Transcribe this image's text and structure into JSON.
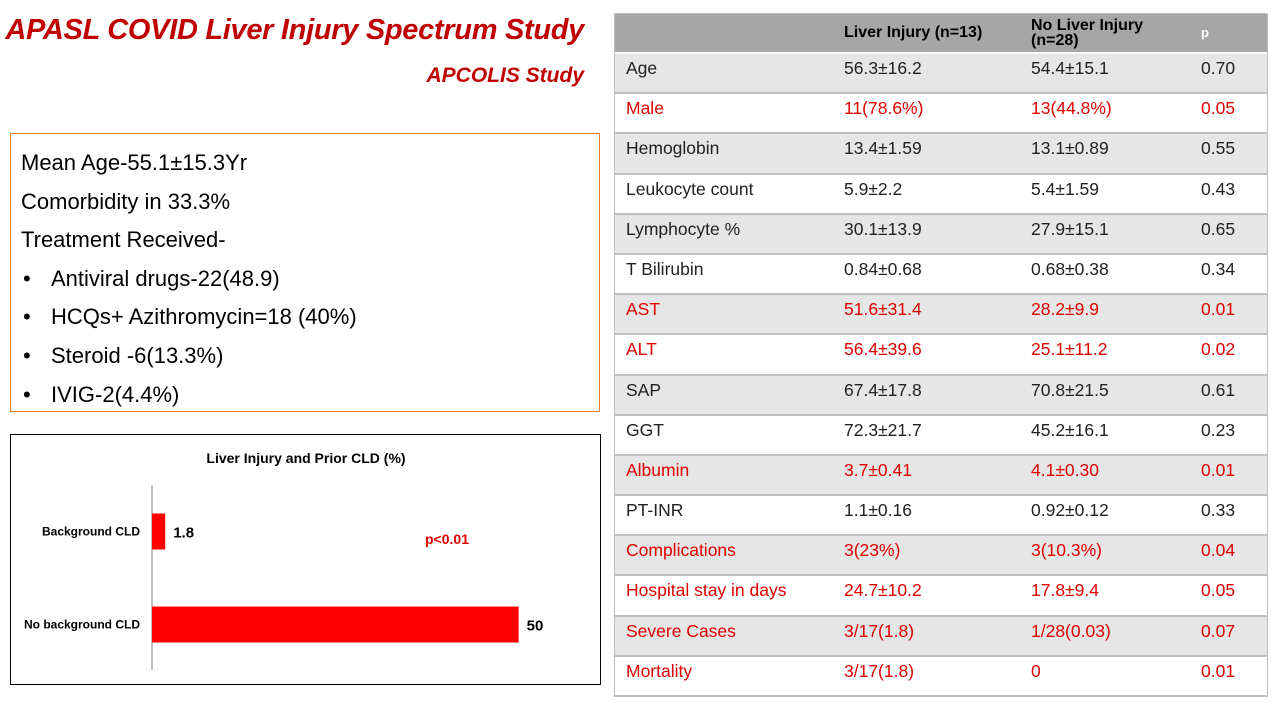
{
  "header": {
    "title": "APASL COVID Liver Injury Spectrum Study",
    "subtitle": "APCOLIS Study"
  },
  "summary": {
    "lines": [
      "Mean Age-55.1±15.3Yr",
      "Comorbidity in 33.3%",
      "Treatment Received-"
    ],
    "bullets": [
      "Antiviral drugs-22(48.9)",
      "HCQs+ Azithromycin=18 (40%)",
      "Steroid -6(13.3%)",
      "IVIG-2(4.4%)"
    ],
    "bullet_char": "•"
  },
  "chart_data": {
    "type": "bar",
    "orientation": "horizontal",
    "title": "Liver Injury and Prior CLD (%)",
    "categories": [
      "Background CLD",
      "No background CLD"
    ],
    "values": [
      1.8,
      50
    ],
    "data_labels": [
      "1.8",
      "50"
    ],
    "annotation": "p<0.01",
    "xlim": [
      0,
      57
    ],
    "bar_color": "#ff0000",
    "grid": false
  },
  "table": {
    "headers": [
      "",
      "Liver Injury (n=13)",
      "No Liver Injury (n=28)",
      "p"
    ],
    "rows": [
      {
        "label": "Age",
        "a": "56.3±16.2",
        "b": "54.4±15.1",
        "p": "0.70",
        "highlight": false
      },
      {
        "label": "Male",
        "a": "11(78.6%)",
        "b": "13(44.8%)",
        "p": "0.05",
        "highlight": true
      },
      {
        "label": "Hemoglobin",
        "a": "13.4±1.59",
        "b": "13.1±0.89",
        "p": "0.55",
        "highlight": false
      },
      {
        "label": "Leukocyte count",
        "a": "5.9±2.2",
        "b": "5.4±1.59",
        "p": "0.43",
        "highlight": false
      },
      {
        "label": "Lymphocyte %",
        "a": "30.1±13.9",
        "b": "27.9±15.1",
        "p": "0.65",
        "highlight": false
      },
      {
        "label": "T Bilirubin",
        "a": "0.84±0.68",
        "b": "0.68±0.38",
        "p": "0.34",
        "highlight": false
      },
      {
        "label": "AST",
        "a": "51.6±31.4",
        "b": "28.2±9.9",
        "p": "0.01",
        "highlight": true
      },
      {
        "label": "ALT",
        "a": "56.4±39.6",
        "b": "25.1±11.2",
        "p": "0.02",
        "highlight": true
      },
      {
        "label": "SAP",
        "a": "67.4±17.8",
        "b": "70.8±21.5",
        "p": "0.61",
        "highlight": false
      },
      {
        "label": "GGT",
        "a": "72.3±21.7",
        "b": "45.2±16.1",
        "p": "0.23",
        "highlight": false
      },
      {
        "label": "Albumin",
        "a": "3.7±0.41",
        "b": "4.1±0.30",
        "p": "0.01",
        "highlight": true
      },
      {
        "label": "PT-INR",
        "a": "1.1±0.16",
        "b": "0.92±0.12",
        "p": "0.33",
        "highlight": false
      },
      {
        "label": "Complications",
        "a": "3(23%)",
        "b": "3(10.3%)",
        "p": "0.04",
        "highlight": true
      },
      {
        "label": "Hospital stay in days",
        "a": "24.7±10.2",
        "b": "17.8±9.4",
        "p": "0.05",
        "highlight": true
      },
      {
        "label": "Severe Cases",
        "a": "3/17(1.8)",
        "b": "1/28(0.03)",
        "p": "0.07",
        "highlight": true
      },
      {
        "label": "Mortality",
        "a": "3/17(1.8)",
        "b": "0",
        "p": "0.01",
        "highlight": true
      }
    ]
  },
  "colors": {
    "title": "#c00000",
    "highlight_text": "#e00000",
    "header_bg": "#a6a6a6",
    "row_alt_bg": "#e7e6e6",
    "summary_border": "#ed7d31"
  }
}
